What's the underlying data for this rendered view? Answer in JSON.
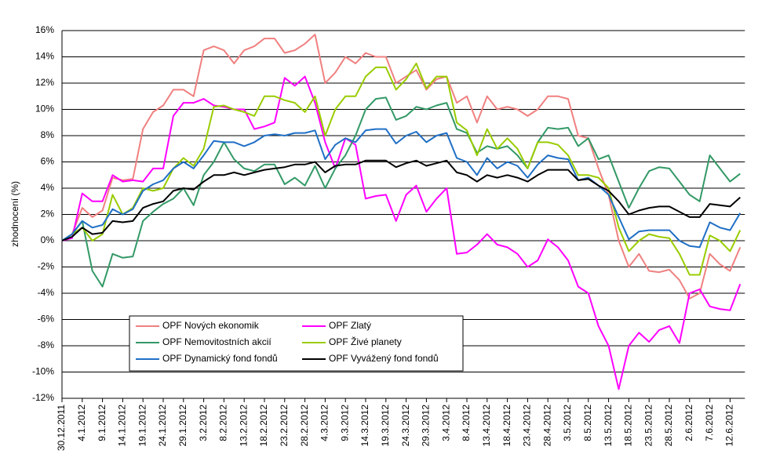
{
  "chart_data": {
    "type": "line",
    "y_label": "zhodnocení (%)",
    "categories": [
      "30.12.2011",
      null,
      "4.1.2012",
      null,
      "9.1.2012",
      null,
      "14.1.2012",
      null,
      "19.1.2012",
      null,
      "24.1.2012",
      null,
      "29.1.2012",
      null,
      "3.2.2012",
      null,
      "8.2.2012",
      null,
      "13.2.2012",
      null,
      "18.2.2012",
      null,
      "23.2.2012",
      null,
      "28.2.2012",
      null,
      "4.3.2012",
      null,
      "9.3.2012",
      null,
      "14.3.2012",
      null,
      "19.3.2012",
      null,
      "24.3.2012",
      null,
      "29.3.2012",
      null,
      "3.4.2012",
      null,
      "8.4.2012",
      null,
      "13.4.2012",
      null,
      "18.4.2012",
      null,
      "23.4.2012",
      null,
      "28.4.2012",
      null,
      "3.5.2012",
      null,
      "8.5.2012",
      null,
      "13.5.2012",
      null,
      "18.5.2012",
      null,
      "23.5.2012",
      null,
      "28.5.2012",
      null,
      "2.6.2012",
      null,
      "7.6.2012",
      null,
      "12.6.2012",
      null
    ],
    "ylim": [
      -12,
      16
    ],
    "yticks": [
      {
        "value": -12,
        "label": "-12%"
      },
      {
        "value": -10,
        "label": "-10%"
      },
      {
        "value": -8,
        "label": "-8%"
      },
      {
        "value": -6,
        "label": "-6%"
      },
      {
        "value": -4,
        "label": "-4%"
      },
      {
        "value": -2,
        "label": "-2%"
      },
      {
        "value": 0,
        "label": "0%"
      },
      {
        "value": 2,
        "label": "2%"
      },
      {
        "value": 4,
        "label": "4%"
      },
      {
        "value": 6,
        "label": "6%"
      },
      {
        "value": 8,
        "label": "8%"
      },
      {
        "value": 10,
        "label": "10%"
      },
      {
        "value": 12,
        "label": "12%"
      },
      {
        "value": 14,
        "label": "14%"
      },
      {
        "value": 16,
        "label": "16%"
      }
    ],
    "grid": true,
    "legend": "bottom-left",
    "series": [
      {
        "name": "OPF Nových ekonomik",
        "color": "#f08080",
        "values": [
          0,
          0.5,
          2.5,
          1.8,
          2.3,
          4.8,
          4.6,
          4.7,
          8.5,
          9.8,
          10.3,
          11.5,
          11.5,
          11,
          14.5,
          14.8,
          14.5,
          13.5,
          14.5,
          14.8,
          15.4,
          15.4,
          14.3,
          14.5,
          15,
          15.7,
          12,
          12.8,
          14,
          13.5,
          14.3,
          14,
          14,
          12,
          12.5,
          13,
          11.5,
          12.3,
          12.5,
          10.5,
          11,
          9,
          11,
          10,
          10.2,
          10,
          9.5,
          10,
          11,
          11,
          10.8,
          8,
          7.8,
          5.5,
          3.5,
          0,
          -2,
          -1,
          -2.3,
          -2.4,
          -2.2,
          -3,
          -4.4,
          -4,
          -1,
          -1.8,
          -2.3,
          -0.5
        ]
      },
      {
        "name": "OPF Zlatý",
        "color": "#ff00ff",
        "values": [
          0,
          0.2,
          3.6,
          3,
          3,
          5,
          4.5,
          4.6,
          4.5,
          5.5,
          5.5,
          9.5,
          10.5,
          10.5,
          10.8,
          10.3,
          10.2,
          10,
          10,
          8.5,
          8.7,
          9,
          12.4,
          11.8,
          12.5,
          10.5,
          7.5,
          5.5,
          7.8,
          7.3,
          3.2,
          3.4,
          3.5,
          1.5,
          3.5,
          4.2,
          2.2,
          3.2,
          4,
          -1,
          -0.9,
          -0.3,
          0.5,
          -0.3,
          -0.5,
          -1,
          -2,
          -1.5,
          0.1,
          -0.5,
          -1.5,
          -3.5,
          -4,
          -6.5,
          -8,
          -11.3,
          -8,
          -7,
          -7.7,
          -6.8,
          -6.5,
          -7.8,
          -4,
          -3.7,
          -5,
          -5.2,
          -5.3,
          -3.3
        ]
      },
      {
        "name": "OPF Nemovitostních akcií",
        "color": "#339966",
        "values": [
          0,
          0.5,
          1.5,
          -2.3,
          -3.5,
          -1,
          -1.3,
          -1.2,
          1.5,
          2.2,
          2.8,
          3.2,
          4,
          2.7,
          5,
          6,
          7.5,
          6.2,
          5.5,
          5.3,
          5.8,
          5.8,
          4.3,
          4.8,
          4.2,
          5.7,
          4,
          5.5,
          6.5,
          8,
          10,
          10.8,
          10.9,
          9.2,
          9.5,
          10.2,
          10,
          10.3,
          10.5,
          8.5,
          8.2,
          6.7,
          7.2,
          7,
          7.2,
          6.5,
          5.5,
          7.5,
          8.6,
          8.5,
          8.6,
          7.2,
          7.8,
          6.2,
          6.5,
          4.5,
          2.5,
          4,
          5.3,
          5.6,
          5.5,
          4.5,
          3.5,
          3,
          6.5,
          5.5,
          4.5,
          5.1
        ]
      },
      {
        "name": "OPF Živé planety",
        "color": "#99cc00",
        "values": [
          0,
          0.5,
          1,
          0,
          0.5,
          3.5,
          2,
          2.5,
          4,
          3.8,
          4,
          5.5,
          6.3,
          5.7,
          7,
          10.2,
          10.3,
          10,
          9.8,
          9.5,
          11,
          11,
          10.7,
          10.5,
          9.8,
          11,
          8,
          10,
          11,
          11,
          12.5,
          13.2,
          13.2,
          11.5,
          12.3,
          13.5,
          11.6,
          12.5,
          12.5,
          9,
          8.4,
          6.5,
          8.5,
          7,
          7.8,
          7,
          5.5,
          7.5,
          7.5,
          7.3,
          6.5,
          5,
          5,
          4.8,
          4,
          1,
          -0.8,
          0,
          0.5,
          0.3,
          0.2,
          -1,
          -2.6,
          -2.6,
          0.4,
          0,
          -0.8,
          0.8
        ]
      },
      {
        "name": "OPF Dynamický fond fondů",
        "color": "#1f6fc5",
        "values": [
          0,
          0.5,
          1.5,
          1,
          1.2,
          2.4,
          2,
          2.4,
          3.8,
          4.3,
          4.6,
          5.5,
          6,
          5.5,
          6.5,
          7.6,
          7.5,
          7.5,
          7.2,
          7.5,
          8,
          8.1,
          8,
          8.2,
          8.2,
          8.4,
          6.2,
          7.3,
          7.8,
          7.5,
          8.4,
          8.5,
          8.5,
          7.4,
          8,
          8.3,
          7.5,
          8,
          8.2,
          6.3,
          6,
          5,
          6.3,
          5.5,
          6,
          5.7,
          4.8,
          5.8,
          6.5,
          6.3,
          6.2,
          4.6,
          4.8,
          4.2,
          3.5,
          1.8,
          0.1,
          0.7,
          0.8,
          0.8,
          0.8,
          0,
          -0.4,
          -0.5,
          1.4,
          1,
          0.8,
          2.1
        ]
      },
      {
        "name": "OPF Vyvážený fond fondů",
        "color": "#000000",
        "values": [
          0,
          0.3,
          1,
          0.5,
          0.6,
          1.5,
          1.4,
          1.5,
          2.5,
          2.8,
          3,
          3.8,
          4,
          3.9,
          4.5,
          5,
          5,
          5.2,
          5,
          5.2,
          5.4,
          5.5,
          5.6,
          5.8,
          5.8,
          6,
          5.2,
          5.7,
          5.8,
          5.8,
          6.1,
          6.1,
          6.1,
          5.6,
          5.9,
          6.1,
          5.7,
          5.9,
          6.1,
          5.2,
          5,
          4.5,
          5,
          4.8,
          5,
          4.8,
          4.5,
          5,
          5.4,
          5.4,
          5.4,
          4.6,
          4.7,
          4.2,
          3.8,
          3,
          2,
          2.3,
          2.5,
          2.6,
          2.6,
          2.2,
          1.8,
          1.8,
          2.8,
          2.7,
          2.6,
          3.3
        ]
      }
    ]
  }
}
